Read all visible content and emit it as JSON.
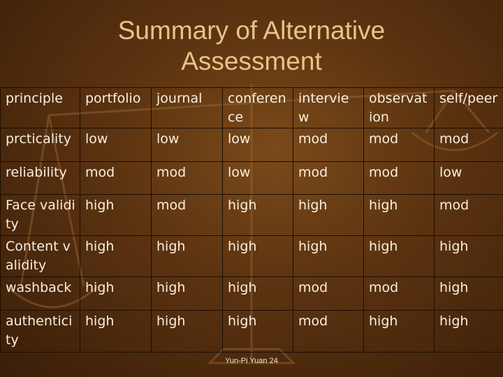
{
  "title": {
    "line1": "Summary of Alternative",
    "line2": "Assessment"
  },
  "table": {
    "headers": [
      "principle",
      "portfolio",
      "journal",
      "conferen ce",
      "interview",
      "observat ion",
      "self/peer"
    ],
    "rows": [
      [
        "prcticality",
        "low",
        "low",
        "low",
        "mod",
        "mod",
        "mod"
      ],
      [
        "reliability",
        "mod",
        "mod",
        "low",
        "mod",
        "mod",
        "low"
      ],
      [
        "Face validity",
        "high",
        "mod",
        "high",
        "high",
        "high",
        "mod"
      ],
      [
        "Content validity",
        "high",
        "high",
        "high",
        "high",
        "high",
        "high"
      ],
      [
        "washback",
        "high",
        "high",
        "high",
        "mod",
        "mod",
        "high"
      ],
      [
        "authentici ty",
        "high",
        "high",
        "high",
        "mod",
        "high",
        "high"
      ]
    ]
  },
  "footer": "Yun-Pi Yuan 24",
  "colors": {
    "title": "#e6c48a",
    "text": "#f8efe0",
    "background": "#5a3210"
  },
  "decoration": "balance-scales-image"
}
